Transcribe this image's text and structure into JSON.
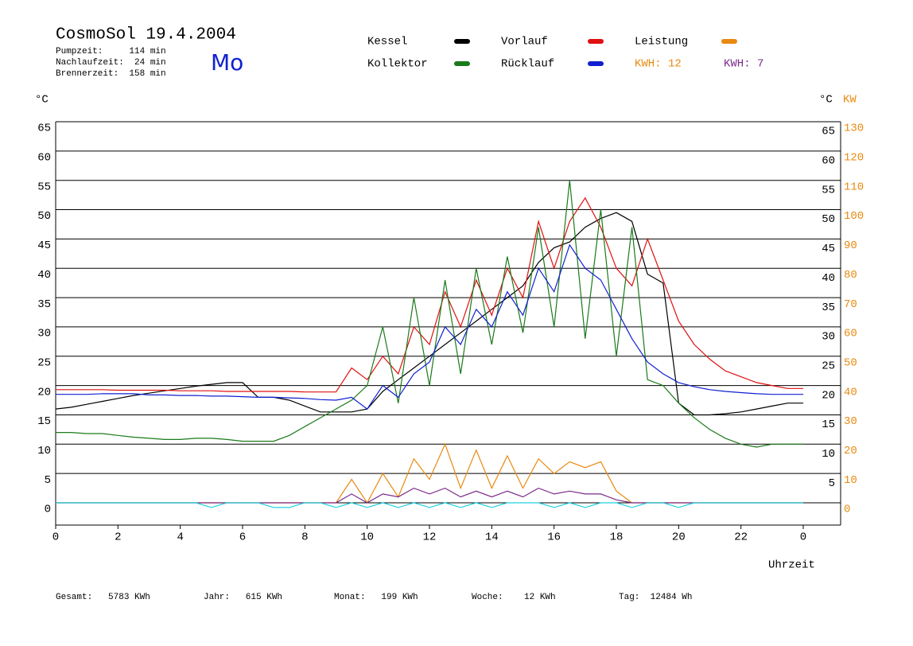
{
  "chart_data": {
    "type": "line",
    "title": "CosmoSol 19.4.2004",
    "day": "Mo",
    "info": [
      "Pumpzeit:     114 min",
      "Nachlaufzeit:  24 min",
      "Brennerzeit:  158 min"
    ],
    "ylabel": "°C",
    "y2label_left": "°C",
    "y2label": "KW",
    "xlabel": "Uhrzeit",
    "kwh_labels": [
      {
        "text": "KWH: 12",
        "color": "#e88a10"
      },
      {
        "text": "KWH: 7",
        "color": "#7a2a8a"
      }
    ],
    "footer": [
      "Gesamt:   5783 KWh",
      "Jahr:   615 KWh",
      "Monat:   199 KWh",
      "Woche:    12 KWh",
      "Tag:  12484 Wh"
    ],
    "xlim": [
      0,
      25.2
    ],
    "xticks": [
      0,
      2,
      4,
      6,
      8,
      10,
      12,
      14,
      16,
      18,
      20,
      22,
      {
        "value": 24,
        "label": "0"
      }
    ],
    "ylim": [
      -3.8,
      65
    ],
    "yticks": [
      0,
      5,
      10,
      15,
      20,
      25,
      30,
      35,
      40,
      45,
      50,
      55,
      60,
      65
    ],
    "y2lim": [
      -7.6,
      130
    ],
    "y2ticks": [
      0,
      10,
      20,
      30,
      40,
      50,
      60,
      70,
      80,
      90,
      100,
      110,
      120,
      130
    ],
    "grid": true,
    "x": [
      0,
      0.5,
      1,
      1.5,
      2,
      2.5,
      3,
      3.5,
      4,
      4.5,
      5,
      5.5,
      6,
      6.5,
      7,
      7.5,
      8,
      8.5,
      9,
      9.5,
      10,
      10.5,
      11,
      11.5,
      12,
      12.5,
      13,
      13.5,
      14,
      14.5,
      15,
      15.5,
      16,
      16.5,
      17,
      17.5,
      18,
      18.5,
      19,
      19.5,
      20,
      20.5,
      21,
      21.5,
      22,
      22.5,
      23,
      23.5,
      24
    ],
    "series": [
      {
        "name": "Kessel",
        "color": "#000000",
        "values": [
          16,
          16.3,
          16.8,
          17.3,
          17.8,
          18.3,
          18.7,
          19.1,
          19.5,
          19.9,
          20.2,
          20.5,
          20.5,
          18,
          18,
          17.5,
          16.5,
          15.5,
          15.5,
          15.5,
          16,
          19,
          21,
          23,
          25,
          27,
          29,
          31,
          33,
          35,
          37,
          41,
          43.5,
          44.5,
          47,
          48.5,
          49.5,
          48,
          39,
          37.5,
          17,
          15,
          15,
          15.2,
          15.5,
          16,
          16.5,
          17,
          17
        ]
      },
      {
        "name": "Vorlauf",
        "color": "#e01010",
        "values": [
          19.3,
          19.3,
          19.3,
          19.3,
          19.2,
          19.2,
          19.2,
          19.2,
          19.1,
          19.1,
          19.1,
          19,
          19,
          19,
          19,
          19,
          18.9,
          18.9,
          18.9,
          23,
          21,
          25,
          22,
          30,
          27,
          36,
          30,
          38,
          32,
          40,
          35,
          48,
          40,
          48,
          52,
          47,
          40,
          37,
          45,
          38,
          31,
          27,
          24.5,
          22.5,
          21.5,
          20.5,
          20,
          19.5,
          19.5
        ]
      },
      {
        "name": "Leistung",
        "color": "#e88a10",
        "axis": "y2",
        "values": [
          0,
          0,
          0,
          0,
          0,
          0,
          0,
          0,
          0,
          0,
          0,
          0,
          0,
          0,
          0,
          0,
          0,
          0,
          0,
          8,
          0,
          10,
          2,
          15,
          8,
          20,
          5,
          18,
          5,
          16,
          5,
          15,
          10,
          14,
          12,
          14,
          4,
          0,
          0,
          0,
          0,
          0,
          0,
          0,
          0,
          0,
          0,
          0,
          0
        ]
      },
      {
        "name": "Kollektor",
        "color": "#1a7a1a",
        "values": [
          12,
          12,
          11.8,
          11.8,
          11.5,
          11.2,
          11,
          10.8,
          10.8,
          11,
          11,
          10.8,
          10.5,
          10.5,
          10.5,
          11.5,
          13,
          14.5,
          16,
          17.5,
          20,
          30,
          17,
          35,
          20,
          38,
          22,
          40,
          27,
          42,
          29,
          47,
          30,
          55,
          28,
          50,
          25,
          47,
          21,
          20,
          17,
          14.5,
          12.5,
          11,
          10,
          9.5,
          10,
          10,
          10
        ]
      },
      {
        "name": "Rücklauf",
        "color": "#1020d0",
        "values": [
          18.5,
          18.5,
          18.5,
          18.6,
          18.6,
          18.6,
          18.4,
          18.4,
          18.3,
          18.3,
          18.2,
          18.2,
          18.1,
          18,
          18,
          17.9,
          17.8,
          17.6,
          17.5,
          18,
          16,
          20,
          18,
          22,
          24,
          30,
          27,
          33,
          30,
          36,
          32,
          40,
          36,
          44,
          40,
          38,
          33,
          28,
          24,
          22,
          20.5,
          19.8,
          19.3,
          19,
          18.8,
          18.6,
          18.5,
          18.5,
          18.5
        ]
      },
      {
        "color": "#7a2a8a",
        "axis": "y2",
        "values": [
          0,
          0,
          0,
          0,
          0,
          0,
          0,
          0,
          0,
          0,
          0,
          0,
          0,
          0,
          0,
          0,
          0,
          0,
          0,
          3,
          0,
          3,
          2,
          5,
          3,
          5,
          2,
          4,
          2,
          4,
          2,
          5,
          3,
          4,
          3,
          3,
          1,
          0,
          0,
          0,
          0,
          0,
          0,
          0,
          0,
          0,
          0,
          0,
          0
        ]
      },
      {
        "color": "#20d0e0",
        "values": [
          0,
          0,
          0,
          0,
          0,
          0,
          0,
          0,
          0,
          0,
          -0.8,
          0,
          0,
          0,
          -0.8,
          -0.8,
          0,
          0,
          -0.8,
          0,
          -0.8,
          0,
          -0.8,
          0,
          -0.8,
          0,
          -0.8,
          0,
          -0.8,
          0,
          0,
          0,
          -0.8,
          0,
          -0.8,
          0,
          0,
          -0.8,
          0,
          0,
          -0.8,
          0,
          0,
          0,
          0,
          0,
          0,
          0,
          0
        ]
      }
    ]
  }
}
